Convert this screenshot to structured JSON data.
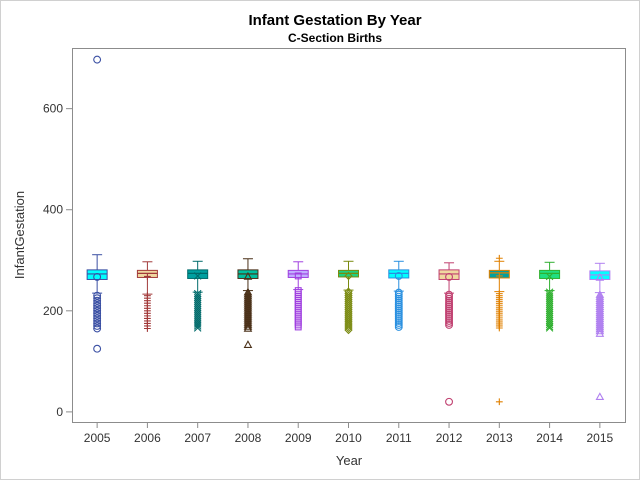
{
  "chart_data": {
    "type": "box",
    "title": "Infant Gestation By Year",
    "subtitle": "C-Section Births",
    "xlabel": "Year",
    "ylabel": "InfantGestation",
    "ylim": [
      -20,
      720
    ],
    "yticks": [
      0,
      200,
      400,
      600
    ],
    "grid": false,
    "legend": "none",
    "categories": [
      "2005",
      "2006",
      "2007",
      "2008",
      "2009",
      "2010",
      "2011",
      "2012",
      "2013",
      "2014",
      "2015"
    ],
    "series": [
      {
        "category": "2005",
        "color": "#3a4fa3",
        "fill": "#00ffff",
        "marker": "circle",
        "whisker_low": 235,
        "q1": 262,
        "median": 273,
        "q3": 281,
        "whisker_high": 311,
        "mean": 267,
        "outliers_low": [
          230,
          225,
          220,
          215,
          210,
          205,
          200,
          195,
          190,
          185,
          180,
          175,
          170,
          165,
          125
        ],
        "outliers_high": [
          697
        ]
      },
      {
        "category": "2006",
        "color": "#a23a3a",
        "fill": "#f0d8a0",
        "marker": "plus",
        "whisker_low": 233,
        "q1": 266,
        "median": 274,
        "q3": 280,
        "whisker_high": 297,
        "mean": 268,
        "outliers_low": [
          230,
          225,
          220,
          215,
          210,
          205,
          200,
          195,
          190,
          185,
          180,
          175,
          170,
          165
        ],
        "outliers_high": []
      },
      {
        "category": "2007",
        "color": "#006b6b",
        "fill": "#00a0a0",
        "marker": "x",
        "whisker_low": 237,
        "q1": 264,
        "median": 274,
        "q3": 281,
        "whisker_high": 298,
        "mean": 269,
        "outliers_low": [
          234,
          230,
          226,
          222,
          218,
          214,
          210,
          206,
          202,
          198,
          194,
          190,
          186,
          182,
          178,
          174,
          170,
          166
        ],
        "outliers_high": []
      },
      {
        "category": "2008",
        "color": "#4a3018",
        "fill": "#00c0a0",
        "marker": "triangle",
        "whisker_low": 240,
        "q1": 264,
        "median": 273,
        "q3": 281,
        "whisker_high": 303,
        "mean": 268,
        "outliers_low": [
          237,
          233,
          229,
          225,
          221,
          217,
          213,
          209,
          205,
          201,
          197,
          193,
          189,
          185,
          181,
          177,
          173,
          169,
          165,
          133
        ],
        "outliers_high": []
      },
      {
        "category": "2009",
        "color": "#a040e0",
        "fill": "#c0b0ff",
        "marker": "square",
        "whisker_low": 242,
        "q1": 266,
        "median": 273,
        "q3": 280,
        "whisker_high": 297,
        "mean": 269,
        "outliers_low": [
          240,
          236,
          232,
          228,
          224,
          220,
          216,
          212,
          208,
          204,
          200,
          196,
          192,
          188,
          184,
          180,
          176,
          172,
          168
        ],
        "outliers_high": []
      },
      {
        "category": "2010",
        "color": "#7a8a10",
        "fill": "#20d080",
        "marker": "diamond",
        "whisker_low": 241,
        "q1": 267,
        "median": 274,
        "q3": 280,
        "whisker_high": 298,
        "mean": 269,
        "outliers_low": [
          238,
          234,
          230,
          226,
          222,
          218,
          214,
          210,
          206,
          202,
          198,
          194,
          190,
          186,
          182,
          178,
          174,
          170,
          166,
          162
        ],
        "outliers_high": []
      },
      {
        "category": "2011",
        "color": "#2a90e0",
        "fill": "#00ffff",
        "marker": "circle",
        "whisker_low": 239,
        "q1": 265,
        "median": 274,
        "q3": 281,
        "whisker_high": 298,
        "mean": 269,
        "outliers_low": [
          236,
          232,
          228,
          224,
          220,
          216,
          212,
          208,
          204,
          200,
          196,
          192,
          188,
          184,
          180,
          176,
          172,
          168
        ],
        "outliers_high": []
      },
      {
        "category": "2012",
        "color": "#c04070",
        "fill": "#f0d8a0",
        "marker": "circle",
        "whisker_low": 235,
        "q1": 262,
        "median": 273,
        "q3": 281,
        "whisker_high": 295,
        "mean": 267,
        "outliers_low": [
          232,
          228,
          224,
          220,
          216,
          212,
          208,
          204,
          200,
          196,
          192,
          188,
          184,
          180,
          176,
          172,
          20
        ],
        "outliers_high": []
      },
      {
        "category": "2013",
        "color": "#e08000",
        "fill": "#00a0a0",
        "marker": "plus",
        "whisker_low": 238,
        "q1": 265,
        "median": 275,
        "q3": 280,
        "whisker_high": 298,
        "mean": 269,
        "outliers_low": [
          234,
          230,
          226,
          222,
          218,
          214,
          210,
          206,
          202,
          198,
          194,
          190,
          186,
          182,
          178,
          174,
          170,
          166,
          20
        ],
        "outliers_high": [
          304
        ]
      },
      {
        "category": "2014",
        "color": "#30b030",
        "fill": "#20e080",
        "marker": "x",
        "whisker_low": 240,
        "q1": 264,
        "median": 274,
        "q3": 280,
        "whisker_high": 296,
        "mean": 268,
        "outliers_low": [
          237,
          233,
          229,
          225,
          221,
          217,
          213,
          209,
          205,
          201,
          197,
          193,
          189,
          185,
          181,
          177,
          173,
          169,
          166
        ],
        "outliers_high": []
      },
      {
        "category": "2015",
        "color": "#b080f0",
        "fill": "#00ffff",
        "marker": "triangle",
        "whisker_low": 236,
        "q1": 262,
        "median": 271,
        "q3": 279,
        "whisker_high": 294,
        "mean": 266,
        "outliers_low": [
          232,
          228,
          224,
          220,
          216,
          212,
          208,
          204,
          200,
          196,
          192,
          188,
          184,
          180,
          176,
          172,
          168,
          164,
          160,
          155,
          30
        ],
        "outliers_high": []
      }
    ]
  }
}
